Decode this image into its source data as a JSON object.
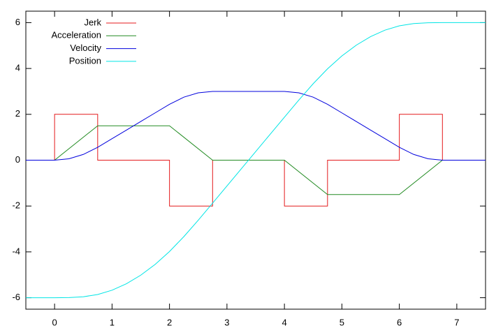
{
  "chart_data": {
    "type": "line",
    "xlim": [
      -0.5,
      7.5
    ],
    "xticks": [
      0,
      1,
      2,
      3,
      4,
      5,
      6,
      7
    ],
    "ylim": [
      -6.5,
      6.5
    ],
    "yticks": [
      -6,
      -4,
      -2,
      0,
      2,
      4,
      6
    ],
    "legend": "top-left",
    "series": [
      {
        "name": "Jerk",
        "color": "#e41a1c",
        "x": [
          -0.5,
          0,
          0,
          0.75,
          0.75,
          2,
          2,
          2.75,
          2.75,
          4,
          4,
          4.75,
          4.75,
          6,
          6,
          6.75,
          6.75,
          7.5
        ],
        "values": [
          0,
          0,
          2,
          2,
          0,
          0,
          -2,
          -2,
          0,
          0,
          -2,
          -2,
          0,
          0,
          2,
          2,
          0,
          0
        ]
      },
      {
        "name": "Acceleration",
        "color": "#228b22",
        "x": [
          -0.5,
          0,
          0.75,
          2,
          2.75,
          4,
          4.75,
          6,
          6.75,
          7.5
        ],
        "values": [
          0,
          0,
          1.5,
          1.5,
          0,
          0,
          -1.5,
          -1.5,
          0,
          0
        ]
      },
      {
        "name": "Velocity",
        "color": "#0000dd",
        "x": [
          -0.5,
          -0.25,
          0,
          0.25,
          0.5,
          0.75,
          1,
          1.25,
          1.5,
          1.75,
          2,
          2.25,
          2.5,
          2.75,
          3,
          3.25,
          3.5,
          3.75,
          4,
          4.25,
          4.5,
          4.75,
          5,
          5.25,
          5.5,
          5.75,
          6,
          6.25,
          6.5,
          6.75,
          7,
          7.25,
          7.5
        ],
        "values": [
          0,
          0,
          0,
          0.0625,
          0.25,
          0.5625,
          0.9375,
          1.3125,
          1.6875,
          2.0625,
          2.4375,
          2.75,
          2.9375,
          3,
          3,
          3,
          3,
          3,
          3,
          2.9375,
          2.75,
          2.4375,
          2.0625,
          1.6875,
          1.3125,
          0.9375,
          0.5625,
          0.25,
          0.0625,
          0,
          0,
          0,
          0
        ]
      },
      {
        "name": "Position",
        "color": "#00e5e5",
        "x": [
          -0.5,
          -0.25,
          0,
          0.25,
          0.5,
          0.75,
          1,
          1.25,
          1.5,
          1.75,
          2,
          2.25,
          2.5,
          2.75,
          3,
          3.25,
          3.5,
          3.75,
          4,
          4.25,
          4.5,
          4.75,
          5,
          5.25,
          5.5,
          5.75,
          6,
          6.25,
          6.5,
          6.75,
          7,
          7.25,
          7.5
        ],
        "values": [
          -6,
          -6,
          -6,
          -5.995,
          -5.958,
          -5.859,
          -5.672,
          -5.391,
          -5.016,
          -4.547,
          -3.984,
          -3.333,
          -2.62,
          -1.875,
          -1.125,
          -0.375,
          0.375,
          1.125,
          1.875,
          2.62,
          3.333,
          3.984,
          4.547,
          5.016,
          5.391,
          5.672,
          5.859,
          5.958,
          5.995,
          6,
          6,
          6,
          6
        ]
      }
    ]
  }
}
